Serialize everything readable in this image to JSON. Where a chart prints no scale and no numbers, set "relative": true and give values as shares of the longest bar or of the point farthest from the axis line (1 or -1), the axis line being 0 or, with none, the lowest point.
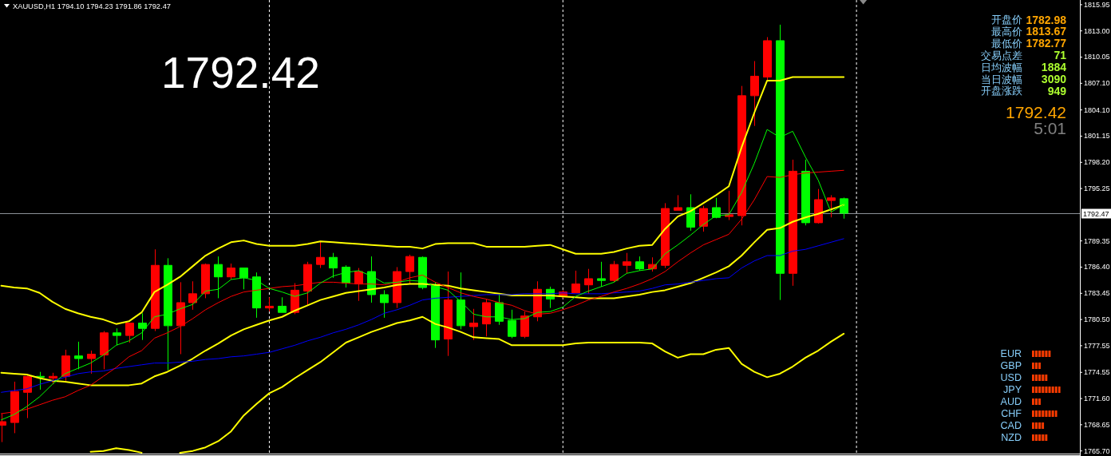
{
  "chart_data": [
    {
      "type": "candlestick",
      "title": "XAUUSD,H1 1794.10 1794.23 1791.86 1792.47",
      "categories": [
        null,
        null,
        null,
        null,
        null,
        null,
        null,
        null,
        null,
        null,
        null,
        null,
        null,
        null,
        null,
        null,
        null,
        null,
        null,
        null,
        null,
        null,
        null,
        null,
        null,
        null,
        null,
        null,
        null,
        null,
        null,
        null,
        null,
        null,
        null,
        null,
        null,
        null,
        null,
        null,
        null,
        null,
        null,
        null,
        null,
        null,
        null,
        null,
        null,
        null,
        null,
        null,
        null,
        null,
        null,
        null,
        null,
        null,
        null,
        null,
        null,
        null,
        null,
        null,
        null,
        null,
        null
      ],
      "ohlc": [
        [
          1768.6,
          1769.9,
          1766.7,
          1769.0
        ],
        [
          1768.9,
          1773.5,
          1767.7,
          1772.4
        ],
        [
          1772.3,
          1774.2,
          1769.4,
          1774.1
        ],
        [
          1774.1,
          1774.6,
          1772.6,
          1774.0
        ],
        [
          1773.9,
          1774.5,
          1773.2,
          1774.1
        ],
        [
          1774.1,
          1777.1,
          1773.6,
          1776.4
        ],
        [
          1776.4,
          1778.0,
          1774.9,
          1776.1
        ],
        [
          1776.1,
          1777.0,
          1774.4,
          1776.6
        ],
        [
          1776.5,
          1779.2,
          1774.9,
          1779.0
        ],
        [
          1779.0,
          1779.5,
          1777.6,
          1778.7
        ],
        [
          1778.7,
          1780.1,
          1777.9,
          1780.1
        ],
        [
          1780.1,
          1781.2,
          1778.2,
          1779.5
        ],
        [
          1779.5,
          1788.4,
          1779.2,
          1786.6
        ],
        [
          1786.6,
          1787.4,
          1774.8,
          1779.8
        ],
        [
          1779.8,
          1784.7,
          1776.6,
          1782.4
        ],
        [
          1782.4,
          1784.8,
          1781.6,
          1783.4
        ],
        [
          1783.4,
          1786.8,
          1782.9,
          1786.7
        ],
        [
          1786.7,
          1787.6,
          1782.9,
          1785.3
        ],
        [
          1785.3,
          1786.8,
          1785.0,
          1786.3
        ],
        [
          1786.3,
          1786.3,
          1783.9,
          1785.2
        ],
        [
          1785.3,
          1785.8,
          1780.7,
          1781.8
        ],
        [
          1781.8,
          1783.0,
          1781.4,
          1782.0
        ],
        [
          1782.0,
          1783.0,
          1781.3,
          1781.3
        ],
        [
          1781.3,
          1784.6,
          1781.1,
          1783.8
        ],
        [
          1783.7,
          1787.0,
          1782.1,
          1786.7
        ],
        [
          1786.7,
          1789.3,
          1786.3,
          1787.5
        ],
        [
          1787.5,
          1788.0,
          1785.2,
          1786.3
        ],
        [
          1786.4,
          1786.6,
          1784.1,
          1784.6
        ],
        [
          1784.5,
          1786.3,
          1782.6,
          1785.9
        ],
        [
          1785.9,
          1787.6,
          1782.4,
          1783.3
        ],
        [
          1783.3,
          1783.8,
          1780.7,
          1782.4
        ],
        [
          1782.4,
          1786.4,
          1781.8,
          1785.9
        ],
        [
          1785.9,
          1787.8,
          1784.5,
          1787.6
        ],
        [
          1787.5,
          1787.6,
          1783.9,
          1784.1
        ],
        [
          1784.3,
          1784.7,
          1777.3,
          1778.2
        ],
        [
          1778.3,
          1785.9,
          1776.4,
          1782.7
        ],
        [
          1782.7,
          1785.8,
          1779.4,
          1779.8
        ],
        [
          1779.7,
          1781.7,
          1778.2,
          1780.1
        ],
        [
          1780.0,
          1782.8,
          1778.6,
          1782.4
        ],
        [
          1782.4,
          1783.3,
          1779.9,
          1780.3
        ],
        [
          1780.4,
          1781.6,
          1778.4,
          1778.6
        ],
        [
          1778.6,
          1781.4,
          1778.4,
          1780.9
        ],
        [
          1780.8,
          1784.8,
          1780.3,
          1783.9
        ],
        [
          1783.9,
          1784.2,
          1781.8,
          1782.8
        ],
        [
          1783.1,
          1783.8,
          1782.9,
          1783.6
        ],
        [
          1783.5,
          1786.0,
          1783.5,
          1784.5
        ],
        [
          1784.4,
          1786.2,
          1783.4,
          1785.1
        ],
        [
          1785.1,
          1787.0,
          1784.2,
          1784.9
        ],
        [
          1784.9,
          1787.1,
          1784.7,
          1786.7
        ],
        [
          1786.6,
          1788.0,
          1785.7,
          1787.0
        ],
        [
          1787.0,
          1787.6,
          1786.0,
          1786.2
        ],
        [
          1786.2,
          1787.5,
          1785.9,
          1786.7
        ],
        [
          1786.6,
          1793.6,
          1786.3,
          1793.0
        ],
        [
          1792.8,
          1794.5,
          1792.8,
          1793.1
        ],
        [
          1793.1,
          1794.6,
          1790.5,
          1790.9
        ],
        [
          1791.0,
          1793.3,
          1790.4,
          1793.0
        ],
        [
          1793.1,
          1794.2,
          1791.9,
          1792.0
        ],
        [
          1792.1,
          1795.0,
          1791.7,
          1792.3
        ],
        [
          1792.2,
          1806.8,
          1791.1,
          1805.7
        ],
        [
          1805.7,
          1809.6,
          1802.3,
          1807.9
        ],
        [
          1807.8,
          1812.3,
          1807.4,
          1811.9
        ],
        [
          1811.9,
          1813.7,
          1782.7,
          1785.7
        ],
        [
          1785.7,
          1798.5,
          1784.3,
          1797.2
        ],
        [
          1797.2,
          1798.5,
          1791.1,
          1791.4
        ],
        [
          1791.4,
          1795.2,
          1791.3,
          1794.0
        ],
        [
          1793.9,
          1794.5,
          1792.0,
          1794.2
        ],
        [
          1794.1,
          1794.23,
          1791.86,
          1792.47
        ]
      ],
      "colors": [
        "#ff0000",
        "#ff0000",
        "#ff0000",
        "#00ff00",
        "#ff0000",
        "#ff0000",
        "#00ff00",
        "#ff0000",
        "#ff0000",
        "#00ff00",
        "#ff0000",
        "#00ff00",
        "#ff0000",
        "#00ff00",
        "#ff0000",
        "#ff0000",
        "#ff0000",
        "#00ff00",
        "#ff0000",
        "#00ff00",
        "#00ff00",
        "#ff0000",
        "#00ff00",
        "#ff0000",
        "#ff0000",
        "#ff0000",
        "#00ff00",
        "#00ff00",
        "#ff0000",
        "#00ff00",
        "#00ff00",
        "#ff0000",
        "#ff0000",
        "#00ff00",
        "#00ff00",
        "#ff0000",
        "#00ff00",
        "#ff0000",
        "#ff0000",
        "#00ff00",
        "#00ff00",
        "#ff0000",
        "#ff0000",
        "#00ff00",
        "#ff0000",
        "#ff0000",
        "#ff0000",
        "#00ff00",
        "#ff0000",
        "#ff0000",
        "#00ff00",
        "#ff0000",
        "#ff0000",
        "#ff0000",
        "#00ff00",
        "#ff0000",
        "#00ff00",
        "#ff0000",
        "#ff0000",
        "#ff0000",
        "#ff0000",
        "#00ff00",
        "#ff0000",
        "#00ff00",
        "#ff0000",
        "#ff0000",
        "#00ff00"
      ],
      "series": [
        {
          "type": "line",
          "color": "#ffff00",
          "values": [
            1784.3,
            1784.1,
            1784.0,
            1783.5,
            1782.5,
            1781.7,
            1781.2,
            1780.8,
            1780.5,
            1780.0,
            1780.3,
            1781.3,
            1783.6,
            1784.4,
            1785.3,
            1786.5,
            1787.7,
            1788.5,
            1789.2,
            1789.4,
            1789.0,
            1788.8,
            1788.8,
            1788.8,
            1789.0,
            1789.3,
            1789.2,
            1789.1,
            1789.0,
            1788.9,
            1788.8,
            1788.7,
            1788.7,
            1788.5,
            1789.0,
            1789.1,
            1789.1,
            1789.1,
            1788.7,
            1788.7,
            1788.7,
            1788.7,
            1788.8,
            1788.9,
            1788.4,
            1787.9,
            1787.9,
            1787.9,
            1788.1,
            1788.5,
            1788.8,
            1788.9,
            1790.7,
            1792.1,
            1792.7,
            1793.6,
            1794.5,
            1795.5,
            1799.9,
            1803.8,
            1807.4,
            1807.4,
            1807.8,
            1807.8,
            1807.8,
            1807.8,
            1807.8
          ]
        },
        {
          "type": "line",
          "color": "#ffff00",
          "values": [
            1774.5,
            1774.4,
            1774.3,
            1773.9,
            1773.6,
            1773.5,
            1773.3,
            1773.1,
            1773.1,
            1773.1,
            1773.1,
            1773.3,
            1774.1,
            1774.6,
            1775.3,
            1776.1,
            1777.0,
            1777.8,
            1778.7,
            1779.4,
            1779.9,
            1780.4,
            1780.8,
            1781.5,
            1782.1,
            1782.7,
            1783.1,
            1783.5,
            1783.7,
            1783.9,
            1784.1,
            1784.4,
            1784.5,
            1784.5,
            1784.4,
            1784.3,
            1784.0,
            1783.8,
            1783.6,
            1783.4,
            1783.2,
            1783.2,
            1783.2,
            1783.2,
            1783.1,
            1783.0,
            1782.9,
            1782.9,
            1782.9,
            1783.1,
            1783.3,
            1783.6,
            1783.8,
            1784.2,
            1784.6,
            1785.2,
            1785.8,
            1786.5,
            1787.7,
            1789.2,
            1790.6,
            1790.8,
            1791.5,
            1792.0,
            1792.4,
            1792.9,
            1793.4
          ]
        },
        {
          "type": "line",
          "color": "#ffff00",
          "values": [
            null,
            null,
            null,
            null,
            null,
            null,
            null,
            1765.6,
            1765.7,
            1766.0,
            1765.8,
            1765.5,
            null,
            null,
            1765.5,
            1765.7,
            1766.1,
            1766.8,
            1767.9,
            1769.7,
            1771.0,
            1772.2,
            1772.9,
            1773.9,
            1774.8,
            1775.7,
            1776.8,
            1777.9,
            1778.5,
            1779.1,
            1779.6,
            1780.1,
            1780.4,
            1780.8,
            1780.0,
            1779.6,
            1779.1,
            1778.5,
            1778.4,
            1778.3,
            1777.6,
            1777.6,
            1777.6,
            1777.6,
            1777.6,
            1777.8,
            1777.9,
            1777.9,
            1777.9,
            1777.9,
            1777.9,
            1777.8,
            1776.9,
            1776.2,
            1776.6,
            1776.6,
            1777.1,
            1777.3,
            1775.5,
            1774.6,
            1774.0,
            1774.4,
            1775.2,
            1776.2,
            1777.0,
            1778.0,
            1778.9
          ]
        },
        {
          "type": "line",
          "color": "#0000ff",
          "values": [
            1772.3,
            1772.5,
            1772.7,
            1773.2,
            1773.6,
            1774.0,
            1774.4,
            1774.6,
            1774.7,
            1775.0,
            1775.2,
            1775.4,
            1775.6,
            1775.6,
            1775.7,
            1775.8,
            1776.0,
            1776.1,
            1776.3,
            1776.4,
            1776.6,
            1776.8,
            1777.2,
            1777.6,
            1778.1,
            1778.5,
            1779.0,
            1779.4,
            1779.9,
            1780.5,
            1781.2,
            1781.6,
            1782.1,
            1782.7,
            1782.9,
            1783.0,
            1783.1,
            1783.2,
            1783.3,
            1783.3,
            1783.3,
            1783.4,
            1783.4,
            1783.4,
            1783.5,
            1783.4,
            1783.4,
            1783.4,
            1783.5,
            1783.6,
            1783.7,
            1784.0,
            1784.4,
            1784.5,
            1784.7,
            1784.9,
            1785.1,
            1785.2,
            1786.3,
            1787.1,
            1787.7,
            1787.7,
            1788.2,
            1788.4,
            1788.8,
            1789.2,
            1789.6
          ]
        },
        {
          "type": "line",
          "color": "#ff0000",
          "values": [
            1769.9,
            1770.1,
            1770.4,
            1770.9,
            1771.4,
            1771.8,
            1772.5,
            1773.1,
            1774.1,
            1775.1,
            1776.3,
            1777.0,
            1778.4,
            1779.0,
            1779.7,
            1780.6,
            1781.6,
            1782.4,
            1783.1,
            1783.6,
            1783.8,
            1784.0,
            1784.2,
            1784.3,
            1784.5,
            1784.7,
            1784.7,
            1784.6,
            1784.5,
            1784.5,
            1784.4,
            1784.7,
            1785.2,
            1785.5,
            1784.7,
            1784.1,
            1783.5,
            1783.1,
            1782.8,
            1782.4,
            1782.1,
            1781.5,
            1781.1,
            1781.2,
            1781.6,
            1782.1,
            1782.7,
            1783.1,
            1783.6,
            1784.0,
            1784.5,
            1785.1,
            1785.9,
            1787.0,
            1788.0,
            1788.9,
            1789.5,
            1790.1,
            1791.8,
            1794.0,
            1796.6,
            1796.5,
            1796.8,
            1797.0,
            1797.1,
            1797.2,
            1797.3
          ]
        },
        {
          "type": "line",
          "color": "#00ff00",
          "values": [
            1769.2,
            1769.8,
            1770.7,
            1771.8,
            1773.2,
            1774.4,
            1775.0,
            1775.6,
            1776.5,
            1777.6,
            1778.1,
            1779.0,
            1780.8,
            1781.1,
            1781.7,
            1782.2,
            1783.7,
            1783.9,
            1785.0,
            1785.2,
            1784.9,
            1784.0,
            1783.6,
            1783.1,
            1783.5,
            1784.6,
            1785.4,
            1785.8,
            1786.0,
            1785.4,
            1784.6,
            1784.7,
            1784.9,
            1784.8,
            1784.2,
            1783.8,
            1782.5,
            1781.1,
            1780.8,
            1780.8,
            1780.5,
            1780.6,
            1781.3,
            1781.4,
            1781.9,
            1783.1,
            1783.7,
            1784.2,
            1784.7,
            1785.7,
            1786.0,
            1786.2,
            1787.9,
            1788.9,
            1790.0,
            1791.2,
            1792.2,
            1792.3,
            1794.8,
            1798.1,
            1801.9,
            1801.0,
            1801.7,
            1798.8,
            1796.2,
            1792.6,
            1793.4
          ]
        }
      ],
      "ylim": [
        1765.4,
        1816.3
      ],
      "yticks": [
        1815.95,
        {
          "value": 1813,
          "label": "1813.00"
        },
        1810.05,
        {
          "value": 1807.1,
          "label": "1807.10"
        },
        {
          "value": 1804.1,
          "label": "1804.10"
        },
        1801.15,
        {
          "value": 1798.2,
          "label": "1798.20"
        },
        1795.25,
        1789.35,
        {
          "value": 1786.4,
          "label": "1786.40"
        },
        1783.45,
        {
          "value": 1780.5,
          "label": "1780.50"
        },
        1777.55,
        1774.55,
        {
          "value": 1771.6,
          "label": "1771.60"
        },
        1768.65,
        {
          "value": 1765.7,
          "label": "1765.70"
        }
      ],
      "tick_labels": "y",
      "ref_lines": [
        {
          "axis": "y",
          "value": 1792.47,
          "label": "1792.47",
          "color": "#8c9097"
        }
      ],
      "annotations": [
        "1792.42",
        "开盘价",
        "1782.98",
        "最高价",
        "1813.67",
        "最低价",
        "1782.77",
        "交易点差",
        "71",
        "日均波幅",
        "1884",
        "当日波幅",
        "3090",
        "开盘涨跌",
        "949",
        "1792.42",
        "5:01"
      ]
    },
    {
      "type": "bar",
      "orientation": "horizontal",
      "relative": true,
      "categories": [
        "EUR",
        "GBP",
        "USD",
        "JPY",
        "AUD",
        "CHF",
        "CAD",
        "NZD"
      ],
      "values": [
        0.67,
        0.33,
        0.56,
        1,
        0.33,
        0.89,
        0.44,
        0.56
      ],
      "color": "#ff3c00"
    }
  ]
}
